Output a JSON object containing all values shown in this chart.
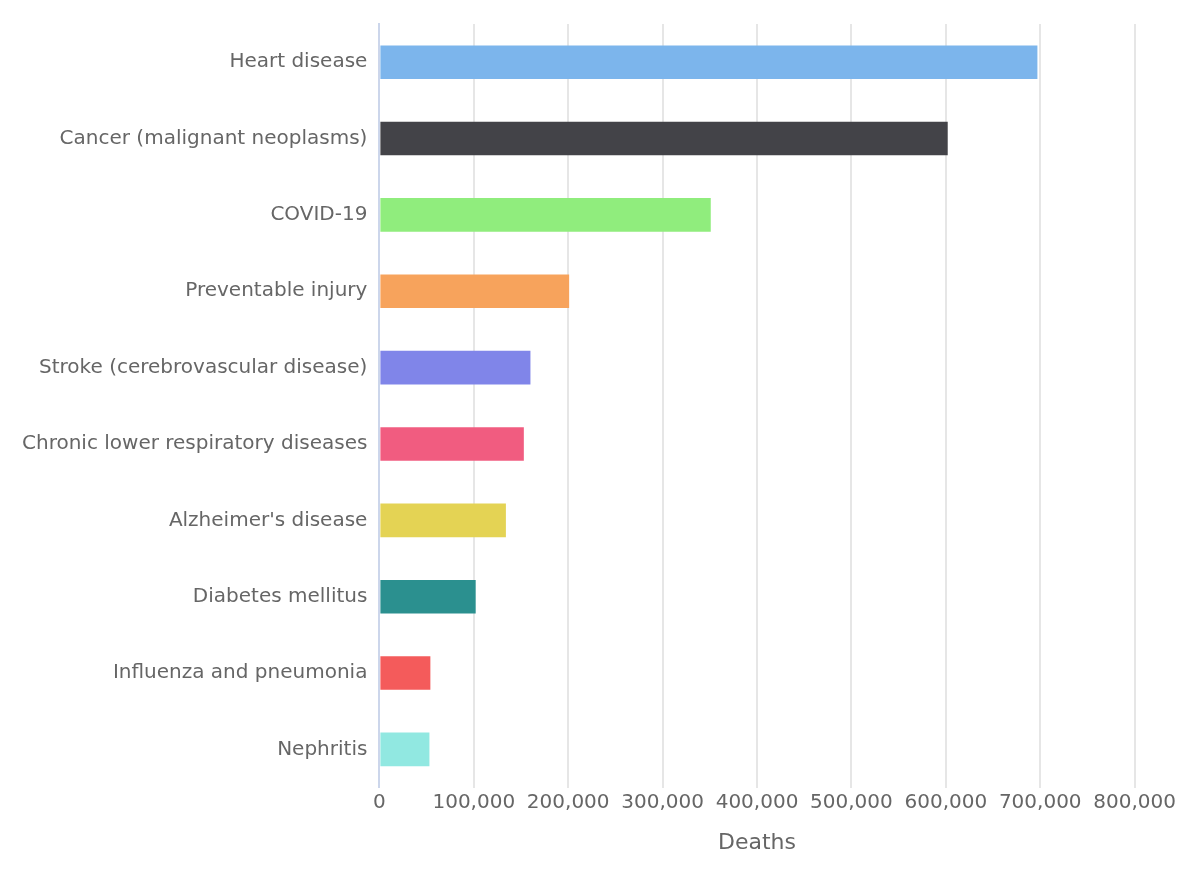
{
  "chart_data": {
    "type": "bar",
    "orientation": "horizontal",
    "xlabel": "Deaths",
    "categories": [
      "Heart disease",
      "Cancer (malignant neoplasms)",
      "COVID-19",
      "Preventable injury",
      "Stroke (cerebrovascular disease)",
      "Chronic lower respiratory diseases",
      "Alzheimer's disease",
      "Diabetes mellitus",
      "Influenza and pneumonia",
      "Nephritis"
    ],
    "values": [
      697000,
      602000,
      351000,
      201000,
      160000,
      153000,
      134000,
      102000,
      54000,
      53000
    ],
    "colors": [
      "#7cb5ec",
      "#434348",
      "#90ed7d",
      "#f7a35c",
      "#8085e9",
      "#f15c80",
      "#e4d354",
      "#2b908f",
      "#f45b5b",
      "#91e8e1"
    ],
    "xlim": [
      0,
      800000
    ],
    "xticks": [
      {
        "value": 0,
        "label": "0"
      },
      {
        "value": 100000,
        "label": "100,000"
      },
      {
        "value": 200000,
        "label": "200,000"
      },
      {
        "value": 300000,
        "label": "300,000"
      },
      {
        "value": 400000,
        "label": "400,000"
      },
      {
        "value": 500000,
        "label": "500,000"
      },
      {
        "value": 600000,
        "label": "600,000"
      },
      {
        "value": 700000,
        "label": "700,000"
      },
      {
        "value": 800000,
        "label": "800,000"
      }
    ],
    "grid": "x",
    "legend": false
  }
}
